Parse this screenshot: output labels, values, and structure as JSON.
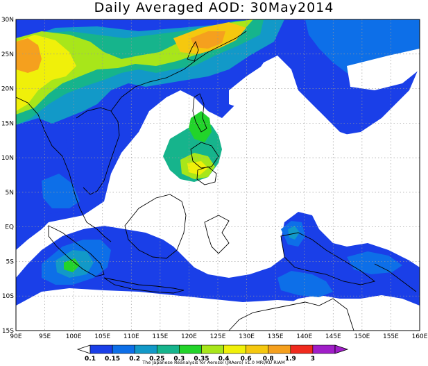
{
  "title": "Daily Averaged AOD: 30May2014",
  "x_ticks": [
    "90E",
    "95E",
    "100E",
    "105E",
    "110E",
    "115E",
    "120E",
    "125E",
    "130E",
    "135E",
    "140E",
    "145E",
    "150E",
    "155E",
    "160E"
  ],
  "y_ticks": [
    "30N",
    "25N",
    "20N",
    "15N",
    "10N",
    "5N",
    "EQ",
    "5S",
    "10S",
    "15S"
  ],
  "legend": {
    "labels": [
      "0.1",
      "0.15",
      "0.2",
      "0.25",
      "0.3",
      "0.35",
      "0.4",
      "0.6",
      "0.8",
      "1.9",
      "3"
    ],
    "colors": [
      "#1a3fe8",
      "#0d6fe8",
      "#1299c8",
      "#16b48c",
      "#22d42a",
      "#a8e61a",
      "#f0f00a",
      "#f5c80f",
      "#f5a01e",
      "#f02a1e",
      "#a01ec8"
    ],
    "credit": "The Japanese Reanalysis for Aerosol (JRAero) v1.0 MRI/KU RIAM"
  },
  "fill_colors": {
    "blue": "#1a3fe8",
    "light_blue": "#0d6fe8",
    "teal": "#1299c8",
    "green_teal": "#16b48c",
    "green": "#22d42a",
    "yellow_green": "#a8e61a",
    "yellow": "#f0f00a",
    "orange": "#f5a01e"
  }
}
